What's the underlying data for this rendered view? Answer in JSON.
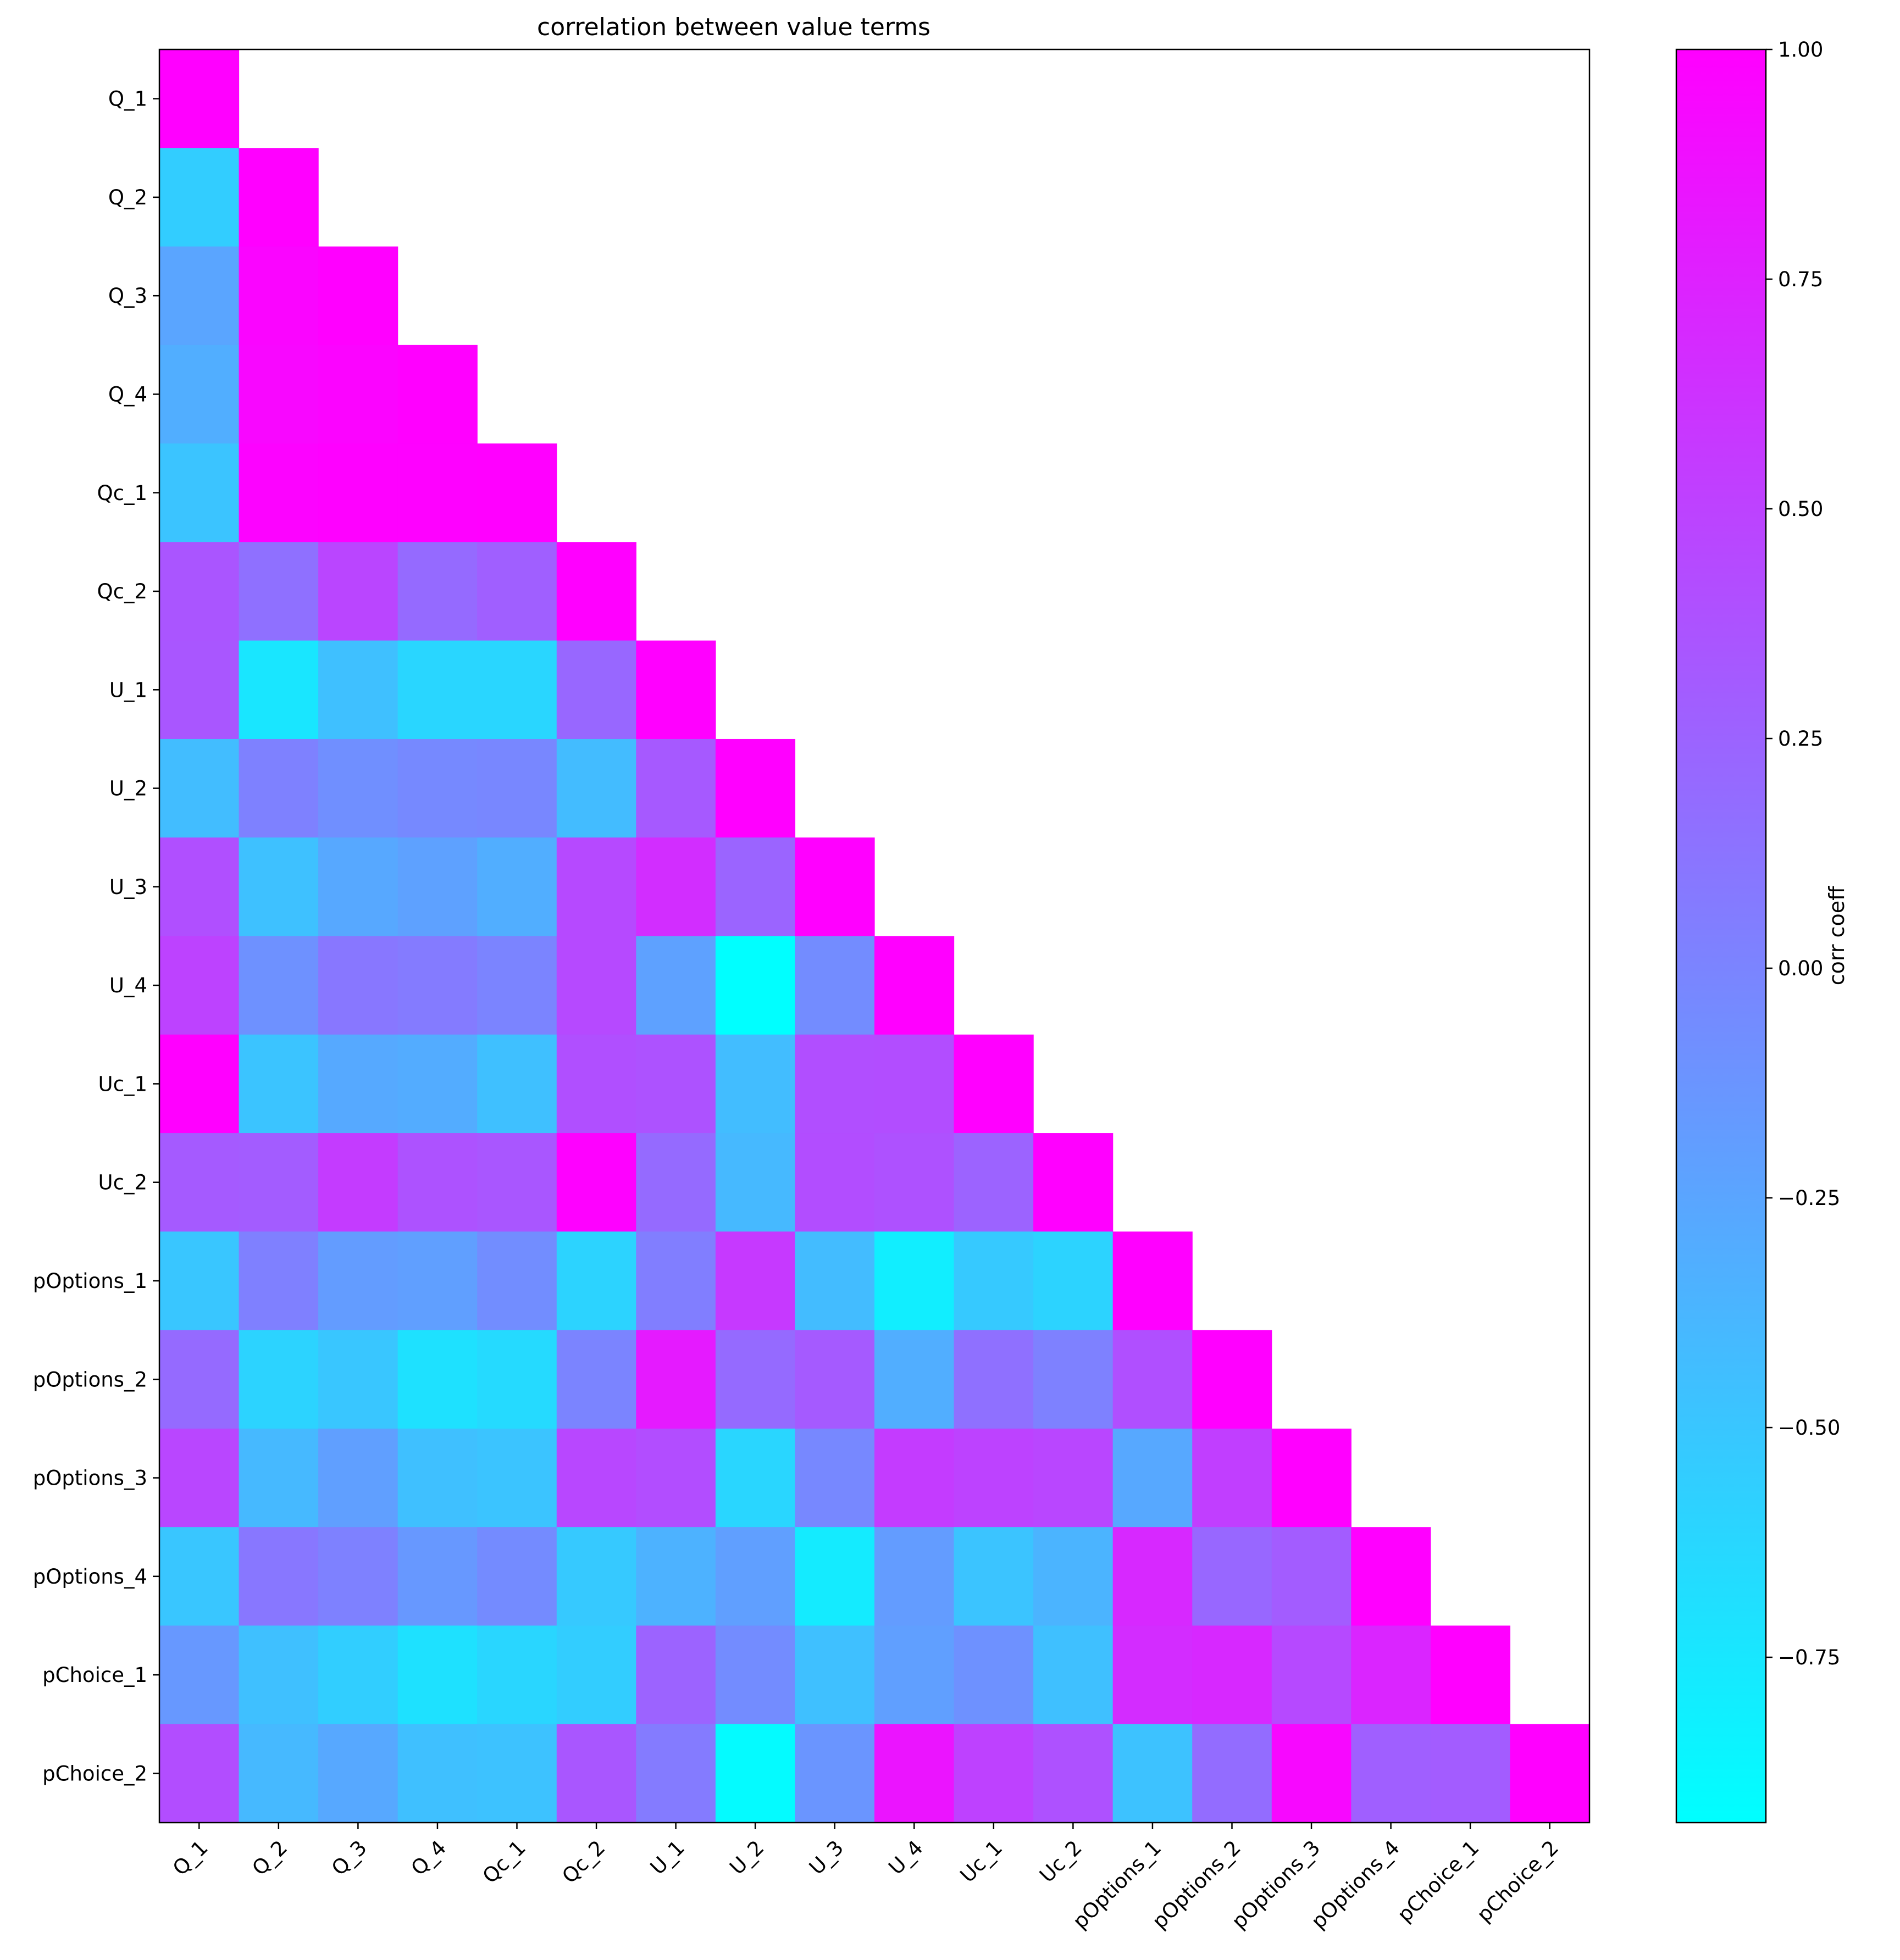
{
  "chart_data": {
    "type": "heatmap",
    "title": "correlation between value terms",
    "row_labels": [
      "Q_1",
      "Q_2",
      "Q_3",
      "Q_4",
      "Qc_1",
      "Qc_2",
      "U_1",
      "U_2",
      "U_3",
      "U_4",
      "Uc_1",
      "Uc_2",
      "pOptions_1",
      "pOptions_2",
      "pOptions_3",
      "pOptions_4",
      "pChoice_1",
      "pChoice_2"
    ],
    "col_labels": [
      "Q_1",
      "Q_2",
      "Q_3",
      "Q_4",
      "Qc_1",
      "Qc_2",
      "U_1",
      "U_2",
      "U_3",
      "U_4",
      "Uc_1",
      "Uc_2",
      "pOptions_1",
      "pOptions_2",
      "pOptions_3",
      "pOptions_4",
      "pChoice_1",
      "pChoice_2"
    ],
    "mask": "lower-triangle including diagonal",
    "values": [
      [
        1.0
      ],
      [
        -0.55,
        1.0
      ],
      [
        -0.25,
        0.96,
        1.0
      ],
      [
        -0.32,
        0.95,
        0.97,
        1.0
      ],
      [
        -0.48,
        0.98,
        0.99,
        0.99,
        1.0
      ],
      [
        0.36,
        0.15,
        0.48,
        0.2,
        0.28,
        1.0
      ],
      [
        0.35,
        -0.74,
        -0.45,
        -0.62,
        -0.62,
        0.22,
        1.0
      ],
      [
        -0.43,
        0.02,
        -0.08,
        -0.04,
        -0.02,
        -0.42,
        0.33,
        1.0
      ],
      [
        0.4,
        -0.46,
        -0.27,
        -0.22,
        -0.32,
        0.45,
        0.66,
        0.24,
        1.0
      ],
      [
        0.5,
        -0.1,
        0.1,
        0.07,
        0.0,
        0.45,
        -0.22,
        -0.93,
        -0.06,
        1.0
      ],
      [
        1.0,
        -0.48,
        -0.28,
        -0.3,
        -0.45,
        0.4,
        0.38,
        -0.43,
        0.41,
        0.42,
        1.0
      ],
      [
        0.32,
        0.3,
        0.55,
        0.38,
        0.35,
        0.99,
        0.2,
        -0.4,
        0.42,
        0.39,
        0.25,
        1.0
      ],
      [
        -0.5,
        0.03,
        -0.18,
        -0.2,
        -0.07,
        -0.6,
        0.05,
        0.57,
        -0.42,
        -0.8,
        -0.52,
        -0.6,
        1.0
      ],
      [
        0.2,
        -0.6,
        -0.5,
        -0.7,
        -0.65,
        0.0,
        0.8,
        0.2,
        0.32,
        -0.32,
        0.15,
        0.02,
        0.4,
        1.0
      ],
      [
        0.47,
        -0.4,
        -0.2,
        -0.45,
        -0.48,
        0.46,
        0.42,
        -0.62,
        -0.03,
        0.55,
        0.5,
        0.47,
        -0.27,
        0.53,
        1.0
      ],
      [
        -0.5,
        0.1,
        0.02,
        -0.15,
        -0.05,
        -0.52,
        -0.35,
        -0.2,
        -0.78,
        -0.18,
        -0.48,
        -0.36,
        0.7,
        0.22,
        0.3,
        1.0
      ],
      [
        -0.15,
        -0.45,
        -0.56,
        -0.7,
        -0.62,
        -0.55,
        0.25,
        -0.06,
        -0.45,
        -0.2,
        -0.1,
        -0.45,
        0.67,
        0.7,
        0.45,
        0.72,
        1.0
      ],
      [
        0.42,
        -0.4,
        -0.27,
        -0.45,
        -0.47,
        0.35,
        0.07,
        -0.9,
        -0.13,
        0.85,
        0.51,
        0.39,
        -0.47,
        0.18,
        0.94,
        0.28,
        0.3,
        1.0
      ]
    ],
    "colormap": "cool",
    "colorbar": {
      "label": "corr coeff",
      "vmin": -0.93,
      "vmax": 1.0,
      "ticks": [
        1.0,
        0.75,
        0.5,
        0.25,
        0.0,
        -0.25,
        -0.5,
        -0.75
      ],
      "tick_labels": [
        "1.00",
        "0.75",
        "0.50",
        "0.25",
        "0.00",
        "−0.25",
        "−0.50",
        "−0.75"
      ]
    }
  }
}
